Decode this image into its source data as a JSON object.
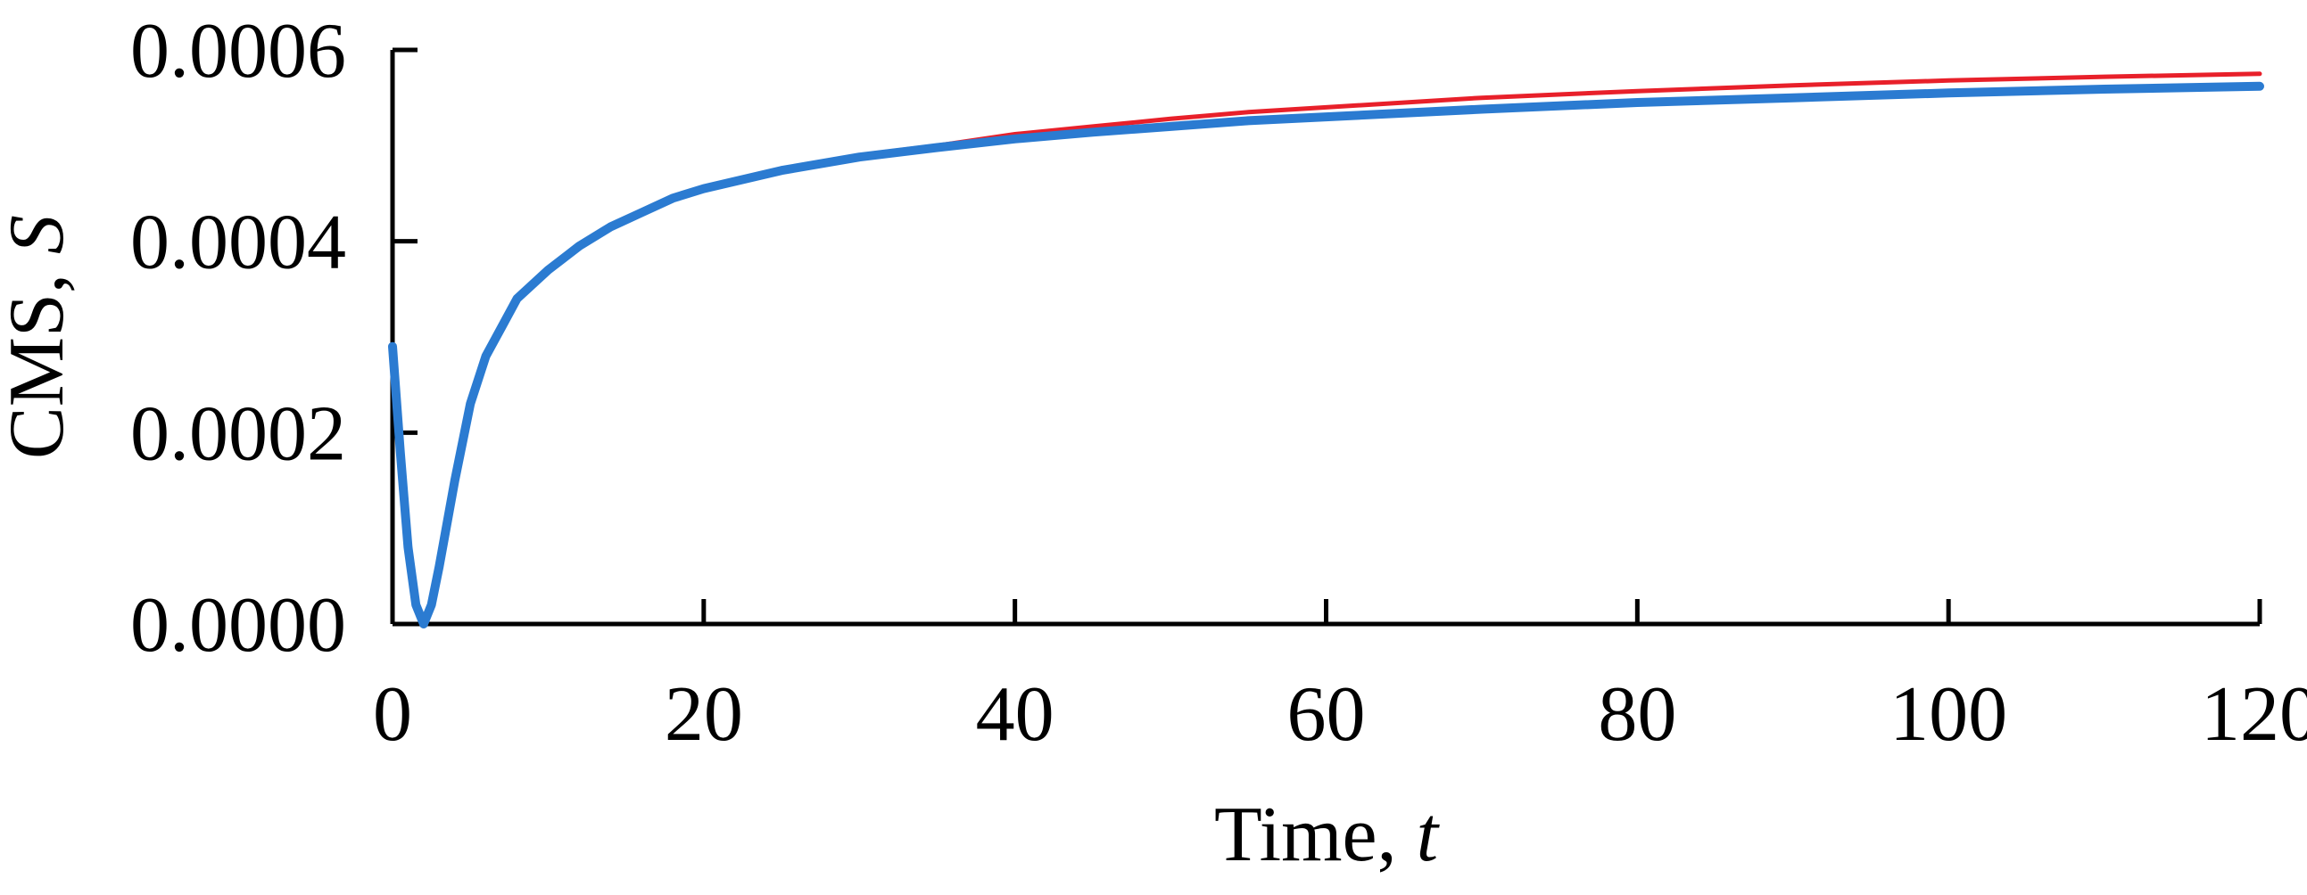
{
  "chart_data": {
    "type": "line",
    "title": "",
    "xlabel": "Time, ",
    "xlabel_var": "t",
    "ylabel": "CMS, ",
    "ylabel_var": "S",
    "xlim": [
      0,
      120
    ],
    "ylim": [
      0,
      0.0006
    ],
    "xticks": [
      0,
      20,
      40,
      60,
      80,
      100,
      120
    ],
    "xtick_labels": [
      "0",
      "20",
      "40",
      "60",
      "80",
      "100",
      "120"
    ],
    "yticks": [
      0,
      0.0002,
      0.0004,
      0.0006
    ],
    "ytick_labels": [
      "0.0000",
      "0.0002",
      "0.0004",
      "0.0006"
    ],
    "grid": false,
    "series": [
      {
        "name": "red",
        "color": "#e8202a",
        "x": [
          0,
          0.5,
          1,
          1.5,
          2,
          2.5,
          3,
          4,
          5,
          6,
          7,
          8,
          10,
          12,
          14,
          16,
          18,
          20,
          25,
          30,
          35,
          40,
          45,
          50,
          55,
          60,
          70,
          80,
          90,
          100,
          110,
          120
        ],
        "y": [
          0.00029,
          0.00018,
          8e-05,
          2e-05,
          0.0,
          2e-05,
          6e-05,
          0.00015,
          0.00023,
          0.00028,
          0.00031,
          0.00034,
          0.00037,
          0.000395,
          0.000415,
          0.00043,
          0.000445,
          0.000455,
          0.000475,
          0.00049,
          0.0005,
          0.000512,
          0.00052,
          0.000528,
          0.000535,
          0.00054,
          0.00055,
          0.000557,
          0.000563,
          0.000568,
          0.000572,
          0.000575
        ]
      },
      {
        "name": "blue",
        "color": "#2b7bd1",
        "x": [
          0,
          0.5,
          1,
          1.5,
          2,
          2.5,
          3,
          4,
          5,
          6,
          7,
          8,
          10,
          12,
          14,
          16,
          18,
          20,
          25,
          30,
          35,
          40,
          45,
          50,
          55,
          60,
          70,
          80,
          90,
          100,
          110,
          120
        ],
        "y": [
          0.00029,
          0.00018,
          8e-05,
          2e-05,
          0.0,
          2e-05,
          6e-05,
          0.00015,
          0.00023,
          0.00028,
          0.00031,
          0.00034,
          0.00037,
          0.000395,
          0.000415,
          0.00043,
          0.000445,
          0.000455,
          0.000474,
          0.000488,
          0.000498,
          0.000507,
          0.000514,
          0.00052,
          0.000526,
          0.00053,
          0.000538,
          0.000545,
          0.00055,
          0.000555,
          0.000559,
          0.000562
        ]
      }
    ]
  }
}
